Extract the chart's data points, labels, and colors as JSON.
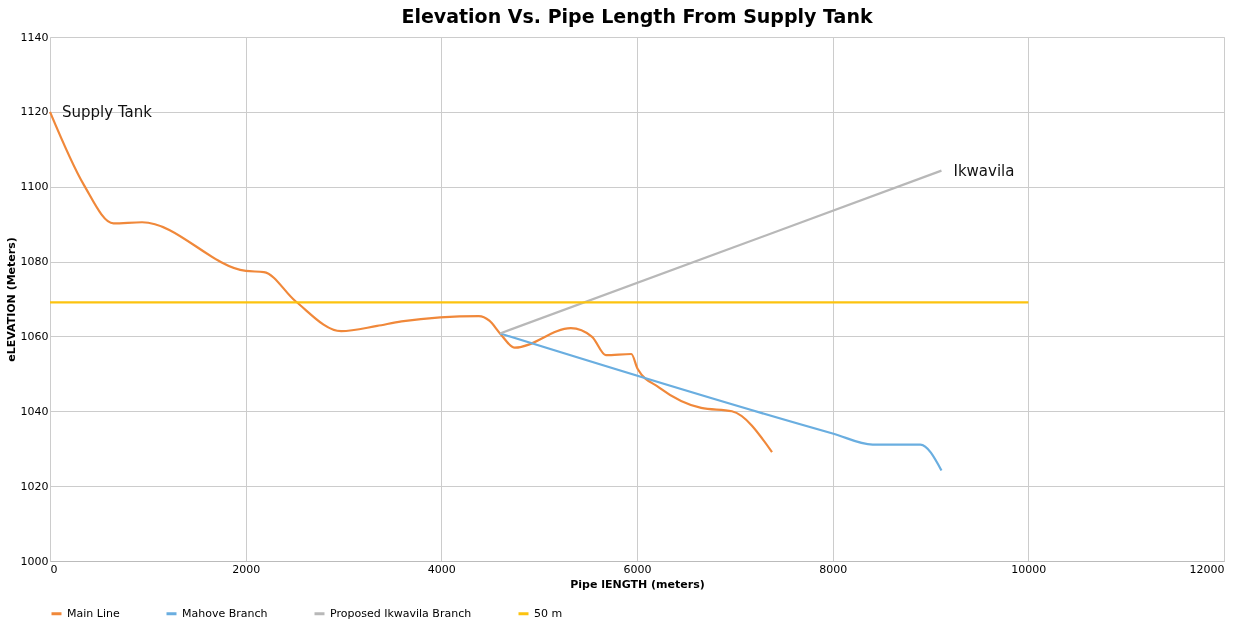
{
  "chart_data": {
    "type": "line",
    "title": "Elevation Vs. Pipe Length From Supply Tank",
    "xlabel": "Pipe lENGTH (meters)",
    "ylabel": "eLEVATION (Meters)",
    "xlim": [
      0,
      12000
    ],
    "xticks": [
      0,
      2000,
      4000,
      6000,
      8000,
      10000,
      12000
    ],
    "ylim": [
      1000,
      1140
    ],
    "yticks": [
      1000,
      1020,
      1040,
      1060,
      1080,
      1100,
      1120,
      1140
    ],
    "grid": true,
    "legend": "bottom",
    "marker": "none",
    "line_style": "solid",
    "series": [
      {
        "name": "Main Line",
        "color": "#f0883a",
        "x": [
          0,
          346,
          649,
          941,
          2002,
          2186,
          2510,
          2976,
          3344,
          3593,
          4383,
          4491,
          4600,
          4750,
          5324,
          5541,
          5682,
          5942,
          6007,
          6223,
          6656,
          6970,
          7380
        ],
        "values": [
          1120,
          1100.5,
          1090.2,
          1090.5,
          1077.5,
          1077.2,
          1069.4,
          1061.4,
          1062.8,
          1064,
          1065.4,
          1064.2,
          1060.8,
          1057,
          1062.2,
          1059.9,
          1055,
          1055.3,
          1051.3,
          1046.4,
          1040.9,
          1040,
          1029.1
        ]
      },
      {
        "name": "Mahove Branch",
        "color": "#6aaee0",
        "x": [
          4600,
          8009,
          8409,
          8896,
          9112
        ],
        "values": [
          1060.8,
          1034,
          1031.1,
          1031.1,
          1024.2
        ]
      },
      {
        "name": "Proposed Ikwavila Branch",
        "color": "#b8b8b8",
        "x": [
          4600,
          9112
        ],
        "values": [
          1060.8,
          1104.3
        ]
      },
      {
        "name": "50 m",
        "color": "#fcc30f",
        "x": [
          0,
          10000
        ],
        "values": [
          1069.1,
          1069.1
        ]
      }
    ],
    "annotations": [
      {
        "text": "Supply Tank",
        "x": 0,
        "y": 1120
      },
      {
        "text": "Ikwavila",
        "x": 9112,
        "y": 1104.3
      }
    ]
  }
}
